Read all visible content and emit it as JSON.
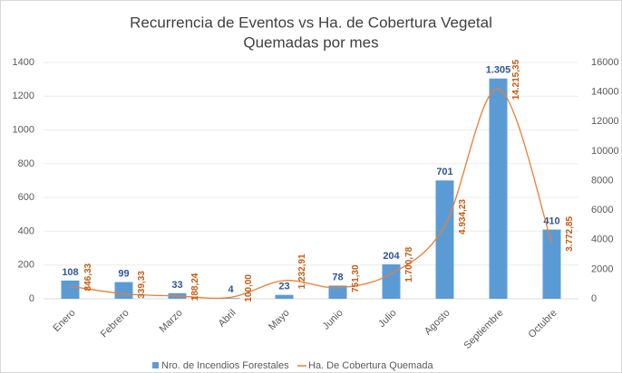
{
  "chart_data": {
    "type": "bar-line",
    "title": [
      "Recurrencia de Eventos vs Ha. de Cobertura Vegetal",
      "Quemadas por mes"
    ],
    "categories": [
      "Enero",
      "Febrero",
      "Marzo",
      "Abril",
      "Mayo",
      "Junio",
      "Julio",
      "Agosto",
      "Septiembre",
      "Octubre"
    ],
    "series": [
      {
        "name": "Nro. de Incendios Forestales",
        "color": "#5b9bd5",
        "values": [
          108,
          99,
          33,
          4,
          23,
          78,
          204,
          701,
          1305,
          410
        ],
        "value_labels": [
          "108",
          "99",
          "33",
          "4",
          "23",
          "78",
          "204",
          "701",
          "1.305",
          "410"
        ]
      },
      {
        "name": "Ha. De Cobertura Quemada",
        "color": "#ed7d31",
        "axis": "y2",
        "values": [
          846.33,
          339.33,
          188.24,
          100.0,
          1232.91,
          751.3,
          1700.78,
          4934.23,
          14215.35,
          3772.85
        ],
        "value_labels": [
          "846,33",
          "339,33",
          "188,24",
          "100,00",
          "1.232,91",
          "751,30",
          "1.700,78",
          "4.934,23",
          "14.215,35",
          "3.772,85"
        ]
      }
    ],
    "ylim": [
      0,
      1400
    ],
    "yticks": [
      0,
      200,
      400,
      600,
      800,
      1000,
      1200,
      1400
    ],
    "y2lim": [
      0,
      16000
    ],
    "y2ticks": [
      0,
      2000,
      4000,
      6000,
      8000,
      10000,
      12000,
      14000,
      16000
    ],
    "grid": true,
    "legend": "bottom"
  }
}
